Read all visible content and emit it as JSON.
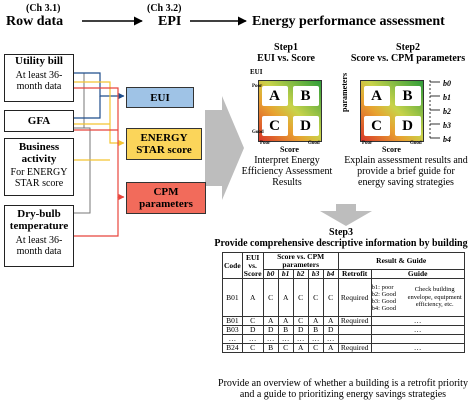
{
  "headers": {
    "ch31": "(Ch 3.1)",
    "row_data": "Row data",
    "ch32": "(Ch 3.2)",
    "epi": "EPI",
    "epa": "Energy performance assessment"
  },
  "inputs": [
    {
      "title": "Utility bill",
      "sub": "At least 36-month data"
    },
    {
      "title": "GFA",
      "sub": ""
    },
    {
      "title": "Business activity",
      "sub": "For ENERGY STAR score"
    },
    {
      "title": "Dry-bulb temperature",
      "sub": "At least 36-month data"
    }
  ],
  "epi_boxes": [
    {
      "label": "EUI",
      "color": "#9fc3e6"
    },
    {
      "label": "ENERGY STAR score",
      "color": "#fbd55a"
    },
    {
      "label": "CPM parameters",
      "color": "#f26b5b"
    }
  ],
  "line_colors": {
    "blue": "#1f4e8c",
    "yellow": "#f4c430",
    "red": "#e8453c",
    "gray": "#666666"
  },
  "step1": {
    "title": "Step1",
    "subtitle": "EUI vs. Score",
    "y_label": "EUI",
    "y_hi": "Poor",
    "y_lo": "Good",
    "x_label": "Score",
    "x_lo": "Poor",
    "x_hi": "Good",
    "cells": [
      "A",
      "B",
      "C",
      "D"
    ],
    "desc": "Interpret Energy Efficiency Assessment Results"
  },
  "step2": {
    "title": "Step2",
    "subtitle": "Score vs. CPM parameters",
    "y_label": "parameters",
    "x_label": "Score",
    "x_lo": "Poor",
    "x_hi": "Good",
    "cells": [
      "A",
      "B",
      "C",
      "D"
    ],
    "params": [
      "b0",
      "b1",
      "b2",
      "b3",
      "b4"
    ],
    "desc": "Explain assessment results and provide a brief guide for energy saving strategies"
  },
  "step3": {
    "title": "Step3",
    "subtitle": "Provide comprehensive descriptive information by building",
    "footer": "Provide an overview of whether a building is a retrofit priority and a guide to prioritizing energy savings strategies"
  },
  "table": {
    "h_code": "Code",
    "h_eui": "EUI vs. Score",
    "h_scpm": "Score vs. CPM parameters",
    "h_result": "Result & Guide",
    "h_retrofit": "Retrofit",
    "h_guide": "Guide",
    "sub_cols": [
      "b0",
      "b1",
      "b2",
      "b3",
      "b4"
    ],
    "rows": [
      {
        "code": "B01",
        "eui": "A",
        "s": [
          "C",
          "A",
          "C",
          "C",
          "C"
        ],
        "retrofit": "Required",
        "guide_left": "b1: poor\nb2: Good\nb3: Good\nb4: Good",
        "guide_right": "Check building envelope, equipment efficiency, etc."
      },
      {
        "code": "B01",
        "eui": "C",
        "s": [
          "A",
          "A",
          "C",
          "A",
          "A"
        ],
        "retrofit": "Required",
        "guide_left": "…",
        "guide_right": ""
      },
      {
        "code": "B03",
        "eui": "D",
        "s": [
          "D",
          "B",
          "D",
          "B",
          "D"
        ],
        "retrofit": "",
        "guide_left": "…",
        "guide_right": ""
      },
      {
        "code": "…",
        "eui": "…",
        "s": [
          "…",
          "…",
          "…",
          "…",
          "…"
        ],
        "retrofit": "",
        "guide_left": "",
        "guide_right": ""
      },
      {
        "code": "B24",
        "eui": "C",
        "s": [
          "B",
          "C",
          "A",
          "C",
          "A"
        ],
        "retrofit": "Required",
        "guide_left": "…",
        "guide_right": ""
      }
    ]
  }
}
